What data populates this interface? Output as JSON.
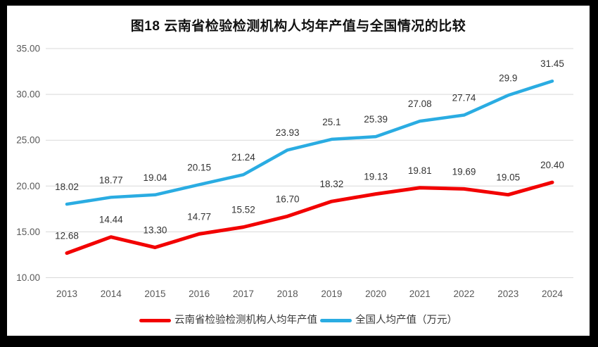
{
  "title": "图18 云南省检验检测机构人均年产值与全国情况的比较",
  "chart_data": {
    "type": "line",
    "title": "图18 云南省检验检测机构人均年产值与全国情况的比较",
    "categories": [
      "2013",
      "2014",
      "2015",
      "2016",
      "2017",
      "2018",
      "2019",
      "2020",
      "2021",
      "2022",
      "2023",
      "2024"
    ],
    "series": [
      {
        "name": "云南省检验检测机构人均年产值",
        "color": "#f20000",
        "stroke_width": 5,
        "values": [
          12.68,
          14.44,
          13.3,
          14.77,
          15.52,
          16.7,
          18.32,
          19.13,
          19.81,
          19.69,
          19.05,
          20.4
        ],
        "labels": [
          "12.68",
          "14.44",
          "13.30",
          "14.77",
          "15.52",
          "16.70",
          "18.32",
          "19.13",
          "19.81",
          "19.69",
          "19.05",
          "20.40"
        ]
      },
      {
        "name": "全国人均产值（万元）",
        "color": "#2aace2",
        "stroke_width": 4.5,
        "values": [
          18.02,
          18.77,
          19.04,
          20.15,
          21.24,
          23.93,
          25.1,
          25.39,
          27.08,
          27.74,
          29.9,
          31.45
        ],
        "labels": [
          "18.02",
          "18.77",
          "19.04",
          "20.15",
          "21.24",
          "23.93",
          "25.1",
          "25.39",
          "27.08",
          "27.74",
          "29.9",
          "31.45"
        ]
      }
    ],
    "ylim": [
      10,
      35
    ],
    "ytick_values": [
      35,
      30,
      25,
      20,
      15,
      10
    ],
    "ytick_labels": [
      "35.00",
      "30.00",
      "25.00",
      "20.00",
      "15.00",
      "10.00"
    ],
    "grid": true,
    "legend_position": "bottom",
    "axis_label_color": "#595959",
    "data_label_color": "#333333",
    "gridline_color": "#d9d9d9",
    "background_color": "#ffffff",
    "frame_color": "#000000"
  }
}
